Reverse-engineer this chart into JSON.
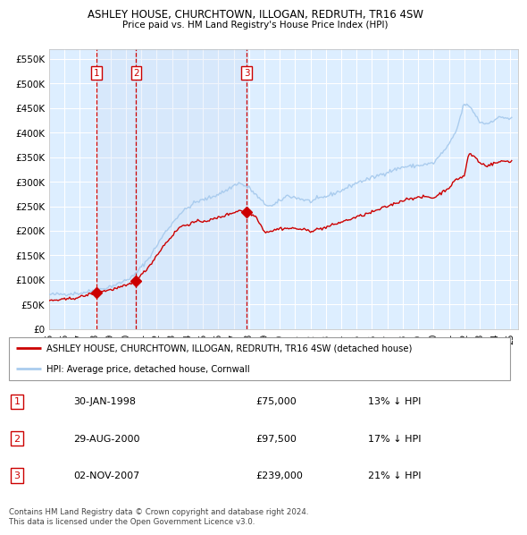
{
  "title": "ASHLEY HOUSE, CHURCHTOWN, ILLOGAN, REDRUTH, TR16 4SW",
  "subtitle": "Price paid vs. HM Land Registry's House Price Index (HPI)",
  "xlim_start": 1995.0,
  "xlim_end": 2025.5,
  "ylim": [
    0,
    570000
  ],
  "yticks": [
    0,
    50000,
    100000,
    150000,
    200000,
    250000,
    300000,
    350000,
    400000,
    450000,
    500000,
    550000
  ],
  "ytick_labels": [
    "£0",
    "£50K",
    "£100K",
    "£150K",
    "£200K",
    "£250K",
    "£300K",
    "£350K",
    "£400K",
    "£450K",
    "£500K",
    "£550K"
  ],
  "xtick_years": [
    1995,
    1996,
    1997,
    1998,
    1999,
    2000,
    2001,
    2002,
    2003,
    2004,
    2005,
    2006,
    2007,
    2008,
    2009,
    2010,
    2011,
    2012,
    2013,
    2014,
    2015,
    2016,
    2017,
    2018,
    2019,
    2020,
    2021,
    2022,
    2023,
    2024,
    2025
  ],
  "sale_dates": [
    1998.08,
    2000.66,
    2007.84
  ],
  "sale_prices": [
    75000,
    97500,
    239000
  ],
  "sale_labels": [
    "1",
    "2",
    "3"
  ],
  "legend_entries": [
    "ASHLEY HOUSE, CHURCHTOWN, ILLOGAN, REDRUTH, TR16 4SW (detached house)",
    "HPI: Average price, detached house, Cornwall"
  ],
  "table_rows": [
    [
      "1",
      "30-JAN-1998",
      "£75,000",
      "13% ↓ HPI"
    ],
    [
      "2",
      "29-AUG-2000",
      "£97,500",
      "17% ↓ HPI"
    ],
    [
      "3",
      "02-NOV-2007",
      "£239,000",
      "21% ↓ HPI"
    ]
  ],
  "footer": "Contains HM Land Registry data © Crown copyright and database right 2024.\nThis data is licensed under the Open Government Licence v3.0.",
  "hpi_color": "#aaccee",
  "price_color": "#cc0000",
  "plot_bg": "#ddeeff",
  "grid_color": "#ffffff",
  "vline_color": "#cc0000",
  "marker_color": "#cc0000"
}
